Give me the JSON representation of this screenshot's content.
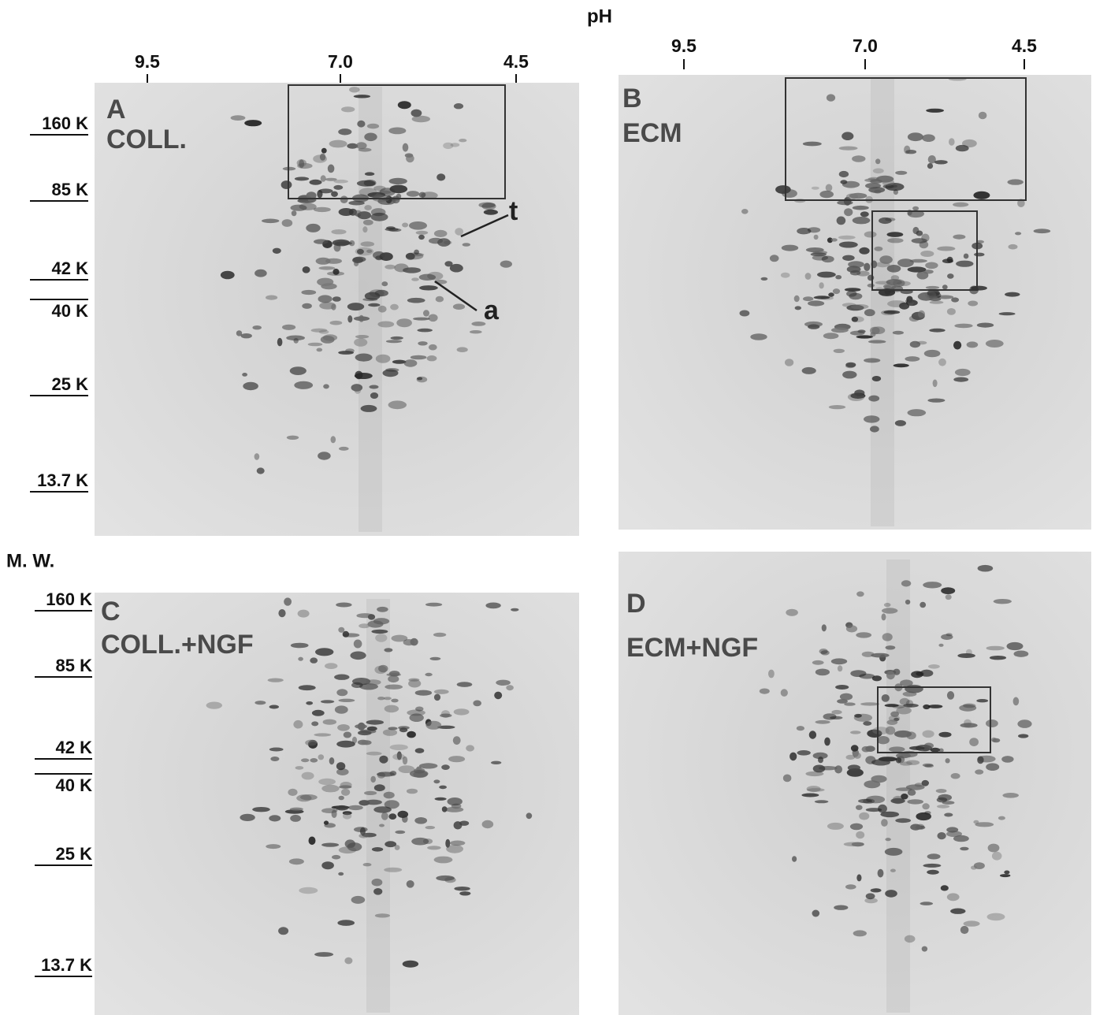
{
  "axis_title_top": "pH",
  "axis_title_left": "M. W.",
  "ph_scales": [
    {
      "ticks": [
        "9.5",
        "7.0",
        "4.5"
      ]
    },
    {
      "ticks": [
        "9.5",
        "7.0",
        "4.5"
      ]
    }
  ],
  "mw_scales": [
    {
      "ticks": [
        "160 K",
        "85 K",
        "42 K",
        "40 K",
        "25 K",
        "13.7 K"
      ]
    },
    {
      "ticks": [
        "160 K",
        "85 K",
        "42 K",
        "40 K",
        "25 K",
        "13.7 K"
      ]
    }
  ],
  "panels": [
    {
      "letter": "A",
      "label": "COLL."
    },
    {
      "letter": "B",
      "label": "ECM"
    },
    {
      "letter": "C",
      "label": "COLL.+NGF"
    },
    {
      "letter": "D",
      "label": "ECM+NGF"
    }
  ],
  "annotations": [
    "t",
    "a"
  ]
}
